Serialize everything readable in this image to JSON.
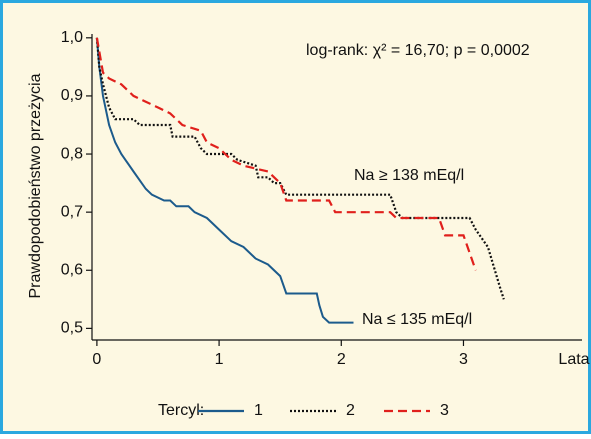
{
  "chart_data": {
    "type": "line",
    "step": false,
    "y_label": "Prawdopodobieństwo przeżycia",
    "x_label": "Lata",
    "annotations": [
      "log-rank: χ² = 16,70; p = 0,0002",
      "Na ≥ 138 mEq/l",
      "Na ≤ 135 mEq/l"
    ],
    "legend_title": "Tercyl:",
    "xlim": [
      -0.04,
      3.97
    ],
    "ylim": [
      0.48,
      1.01
    ],
    "xticks": [
      0,
      1,
      2,
      3
    ],
    "yticks": [
      {
        "value": 1.0,
        "label": "1,0"
      },
      {
        "value": 0.9,
        "label": "0,9"
      },
      {
        "value": 0.8,
        "label": "0,8"
      },
      {
        "value": 0.7,
        "label": "0,7"
      },
      {
        "value": 0.6,
        "label": "0,6"
      },
      {
        "value": 0.5,
        "label": "0,5"
      }
    ],
    "series": [
      {
        "name": "1",
        "color": "#1c5b8c",
        "dash": "solid",
        "x": [
          0,
          0.02,
          0.05,
          0.1,
          0.15,
          0.2,
          0.3,
          0.4,
          0.45,
          0.55,
          0.6,
          0.65,
          0.75,
          0.8,
          0.9,
          1.0,
          1.1,
          1.2,
          1.3,
          1.4,
          1.5,
          1.55,
          1.8,
          1.82,
          1.85,
          1.9,
          2.1
        ],
        "values": [
          1.0,
          0.95,
          0.9,
          0.85,
          0.82,
          0.8,
          0.77,
          0.74,
          0.73,
          0.72,
          0.72,
          0.71,
          0.71,
          0.7,
          0.69,
          0.67,
          0.65,
          0.64,
          0.62,
          0.61,
          0.59,
          0.56,
          0.56,
          0.54,
          0.52,
          0.51,
          0.51
        ]
      },
      {
        "name": "2",
        "color": "#111111",
        "dash": "dotted",
        "x": [
          0,
          0.02,
          0.05,
          0.1,
          0.15,
          0.3,
          0.35,
          0.6,
          0.62,
          0.8,
          0.85,
          0.9,
          1.1,
          1.15,
          1.3,
          1.32,
          1.4,
          1.45,
          1.5,
          1.55,
          2.4,
          2.45,
          2.5,
          3.05,
          3.1,
          3.2,
          3.3,
          3.33
        ],
        "values": [
          1.0,
          0.95,
          0.92,
          0.88,
          0.86,
          0.86,
          0.85,
          0.85,
          0.83,
          0.83,
          0.81,
          0.8,
          0.8,
          0.79,
          0.78,
          0.76,
          0.76,
          0.75,
          0.75,
          0.73,
          0.73,
          0.7,
          0.69,
          0.69,
          0.67,
          0.64,
          0.57,
          0.55
        ]
      },
      {
        "name": "3",
        "color": "#e0201c",
        "dash": "dashed",
        "x": [
          0,
          0.05,
          0.1,
          0.2,
          0.3,
          0.4,
          0.5,
          0.6,
          0.7,
          0.85,
          0.9,
          1.0,
          1.1,
          1.2,
          1.4,
          1.5,
          1.55,
          1.9,
          1.95,
          2.4,
          2.45,
          2.8,
          2.85,
          3.0,
          3.05,
          3.1
        ],
        "values": [
          1.0,
          0.94,
          0.93,
          0.92,
          0.9,
          0.89,
          0.88,
          0.87,
          0.85,
          0.84,
          0.82,
          0.81,
          0.79,
          0.78,
          0.77,
          0.75,
          0.72,
          0.72,
          0.7,
          0.7,
          0.69,
          0.69,
          0.66,
          0.66,
          0.63,
          0.6
        ]
      }
    ]
  }
}
